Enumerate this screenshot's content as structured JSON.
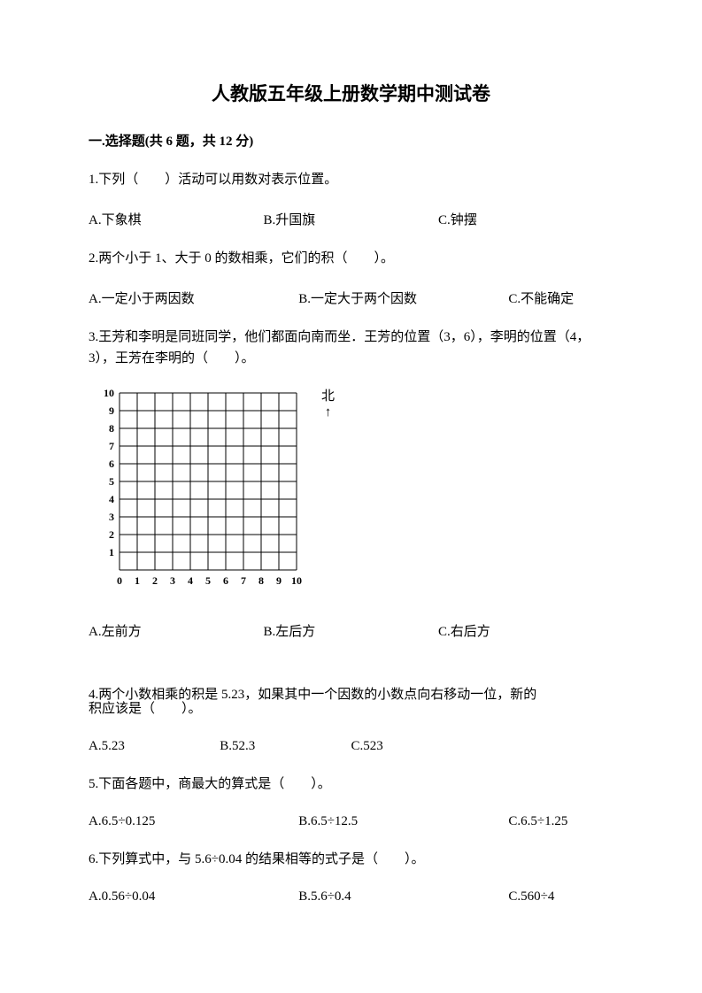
{
  "title": {
    "text": "人教版五年级上册数学期中测试卷",
    "fontsize": 21
  },
  "body_fontsize": 15,
  "section": {
    "label": "一.选择题(共 6 题，共 12 分)"
  },
  "q1": {
    "text": "1.下列（　　）活动可以用数对表示位置。",
    "a": "A.下象棋",
    "b": "B.升国旗",
    "c": "C.钟摆"
  },
  "q2": {
    "text": "2.两个小于 1、大于 0 的数相乘，它们的积（　　）。",
    "a": "A.一定小于两因数",
    "b": "B.一定大于两个因数",
    "c": "C.不能确定"
  },
  "q3": {
    "text": "3.王芳和李明是同班同学，他们都面向南而坐．王芳的位置（3，6），李明的位置（4，3），王芳在李明的（　　）。",
    "a": "A.左前方",
    "b": "B.左后方",
    "c": "C.右后方"
  },
  "grid": {
    "north_char": "北",
    "arrow_char": "↑",
    "x_labels": [
      "0",
      "1",
      "2",
      "3",
      "4",
      "5",
      "6",
      "7",
      "8",
      "9",
      "10"
    ],
    "y_labels": [
      "1",
      "2",
      "3",
      "4",
      "5",
      "6",
      "7",
      "8",
      "9",
      "10"
    ],
    "cell_size": 20,
    "line_color": "#000000",
    "background": "#ffffff",
    "axis_fontsize": 12
  },
  "q4": {
    "line1": "4.两个小数相乘的积是 5.23，如果其中一个因数的小数点向右移动一位，新的",
    "line2": "积应该是（　　）。",
    "a": "A.5.23",
    "b": "B.52.3",
    "c": "C.523"
  },
  "q5": {
    "text": "5.下面各题中，商最大的算式是（　　）。",
    "a": "A.6.5÷0.125",
    "b": "B.6.5÷12.5",
    "c": "C.6.5÷1.25"
  },
  "q6": {
    "text": "6.下列算式中，与 5.6÷0.04 的结果相等的式子是（　　）。",
    "a": "A.0.56÷0.04",
    "b": "B.5.6÷0.4",
    "c": "C.560÷4"
  }
}
